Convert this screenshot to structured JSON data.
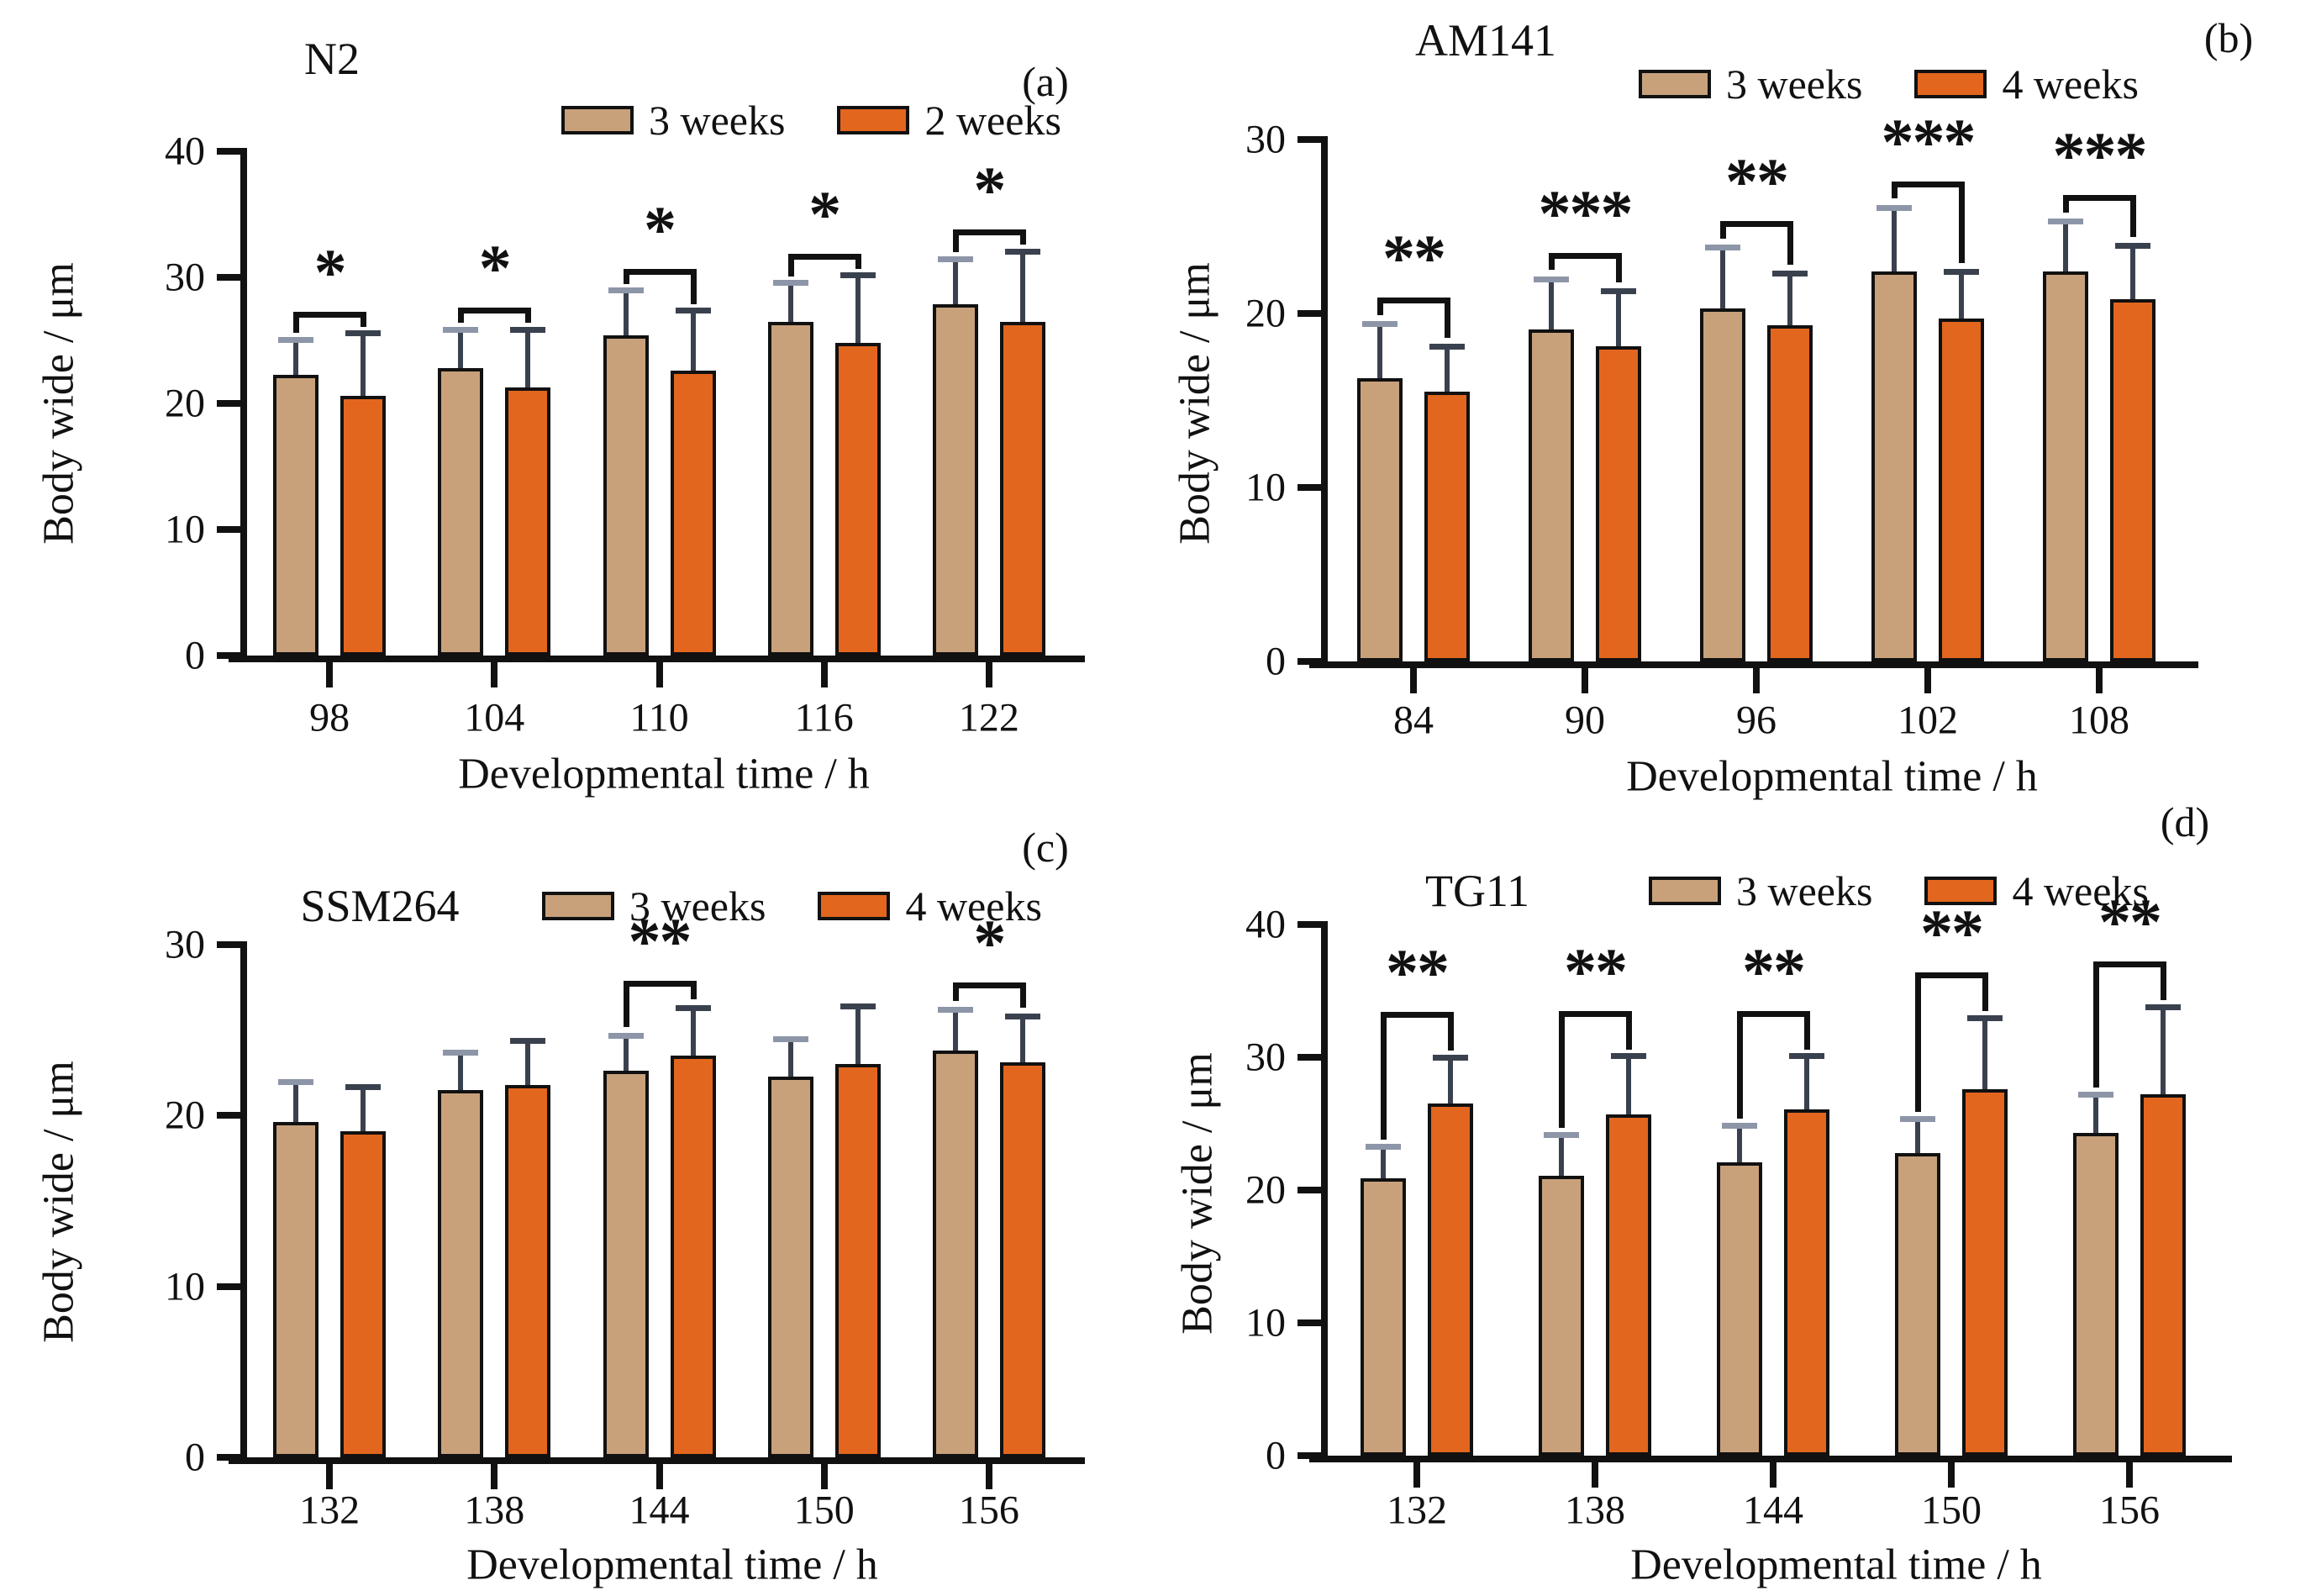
{
  "figure": {
    "x_axis_label": "Developmental time / h",
    "y_axis_label": "Body wide / μm",
    "colors": {
      "series_tan": "#C8A17B",
      "series_orange": "#E2661E",
      "error_gray": "#8D96A8",
      "error_dark": "#3A414E",
      "axis_black": "#111111"
    }
  },
  "chart_data": [
    {
      "type": "bar",
      "panel_label": "(a)",
      "title": "N2",
      "xlabel": "Developmental time / h",
      "ylabel": "Body wide / μm",
      "categories": [
        98,
        104,
        110,
        116,
        122
      ],
      "ylim": [
        0,
        40
      ],
      "yticks": [
        0,
        10,
        20,
        30,
        40
      ],
      "grid": false,
      "legend_position": "top",
      "series": [
        {
          "name": "3 weeks",
          "color": "#C8A17B",
          "error_color": "#8D96A8",
          "values": [
            22.3,
            22.8,
            25.4,
            26.5,
            27.9
          ],
          "errors": [
            2.8,
            3.1,
            3.6,
            3.1,
            3.6
          ]
        },
        {
          "name": "2 weeks",
          "color": "#E2661E",
          "error_color": "#3A414E",
          "values": [
            20.6,
            21.3,
            22.6,
            24.8,
            26.5
          ],
          "errors": [
            5.0,
            4.6,
            4.8,
            5.4,
            5.6
          ]
        }
      ],
      "significance": [
        "*",
        "*",
        "*",
        "*",
        "*"
      ]
    },
    {
      "type": "bar",
      "panel_label": "(b)",
      "title": "AM141",
      "xlabel": "Developmental time / h",
      "ylabel": "Body wide / μm",
      "categories": [
        84,
        90,
        96,
        102,
        108
      ],
      "ylim": [
        0,
        30
      ],
      "yticks": [
        0,
        10,
        20,
        30
      ],
      "grid": false,
      "legend_position": "top",
      "series": [
        {
          "name": "3 weeks",
          "color": "#C8A17B",
          "error_color": "#8D96A8",
          "values": [
            16.3,
            19.1,
            20.3,
            22.4,
            22.4
          ],
          "errors": [
            3.1,
            2.9,
            3.5,
            3.7,
            2.9
          ]
        },
        {
          "name": "4 weeks",
          "color": "#E2661E",
          "error_color": "#3A414E",
          "values": [
            15.5,
            18.1,
            19.3,
            19.7,
            20.8
          ],
          "errors": [
            2.6,
            3.2,
            3.0,
            2.7,
            3.1
          ]
        }
      ],
      "significance": [
        "**",
        "***",
        "**",
        "***",
        "***"
      ]
    },
    {
      "type": "bar",
      "panel_label": "(c)",
      "title": "SSM264",
      "xlabel": "Developmental time / h",
      "ylabel": "Body wide / μm",
      "categories": [
        132,
        138,
        144,
        150,
        156
      ],
      "ylim": [
        0,
        30
      ],
      "yticks": [
        0,
        10,
        20,
        30
      ],
      "grid": false,
      "legend_position": "top",
      "series": [
        {
          "name": "3 weeks",
          "color": "#C8A17B",
          "error_color": "#8D96A8",
          "values": [
            19.6,
            21.5,
            22.6,
            22.3,
            23.8
          ],
          "errors": [
            2.4,
            2.2,
            2.1,
            2.2,
            2.4
          ]
        },
        {
          "name": "4 weeks",
          "color": "#E2661E",
          "error_color": "#3A414E",
          "values": [
            19.1,
            21.8,
            23.5,
            23.0,
            23.1
          ],
          "errors": [
            2.6,
            2.6,
            2.8,
            3.4,
            2.7
          ]
        }
      ],
      "significance": [
        null,
        null,
        "**",
        null,
        "*"
      ]
    },
    {
      "type": "bar",
      "panel_label": "(d)",
      "title": "TG11",
      "xlabel": "Developmental time / h",
      "ylabel": "Body wide / μm",
      "categories": [
        132,
        138,
        144,
        150,
        156
      ],
      "ylim": [
        0,
        40
      ],
      "yticks": [
        0,
        10,
        20,
        30,
        40
      ],
      "grid": false,
      "legend_position": "top",
      "series": [
        {
          "name": "3 weeks",
          "color": "#C8A17B",
          "error_color": "#8D96A8",
          "values": [
            20.9,
            21.1,
            22.1,
            22.8,
            24.3
          ],
          "errors": [
            2.4,
            3.1,
            2.8,
            2.6,
            2.9
          ]
        },
        {
          "name": "4 weeks",
          "color": "#E2661E",
          "error_color": "#3A414E",
          "values": [
            26.5,
            25.7,
            26.1,
            27.6,
            27.2
          ],
          "errors": [
            3.5,
            4.4,
            4.0,
            5.4,
            6.6
          ]
        }
      ],
      "significance": [
        "**",
        "**",
        "**",
        "**",
        "**"
      ]
    }
  ]
}
